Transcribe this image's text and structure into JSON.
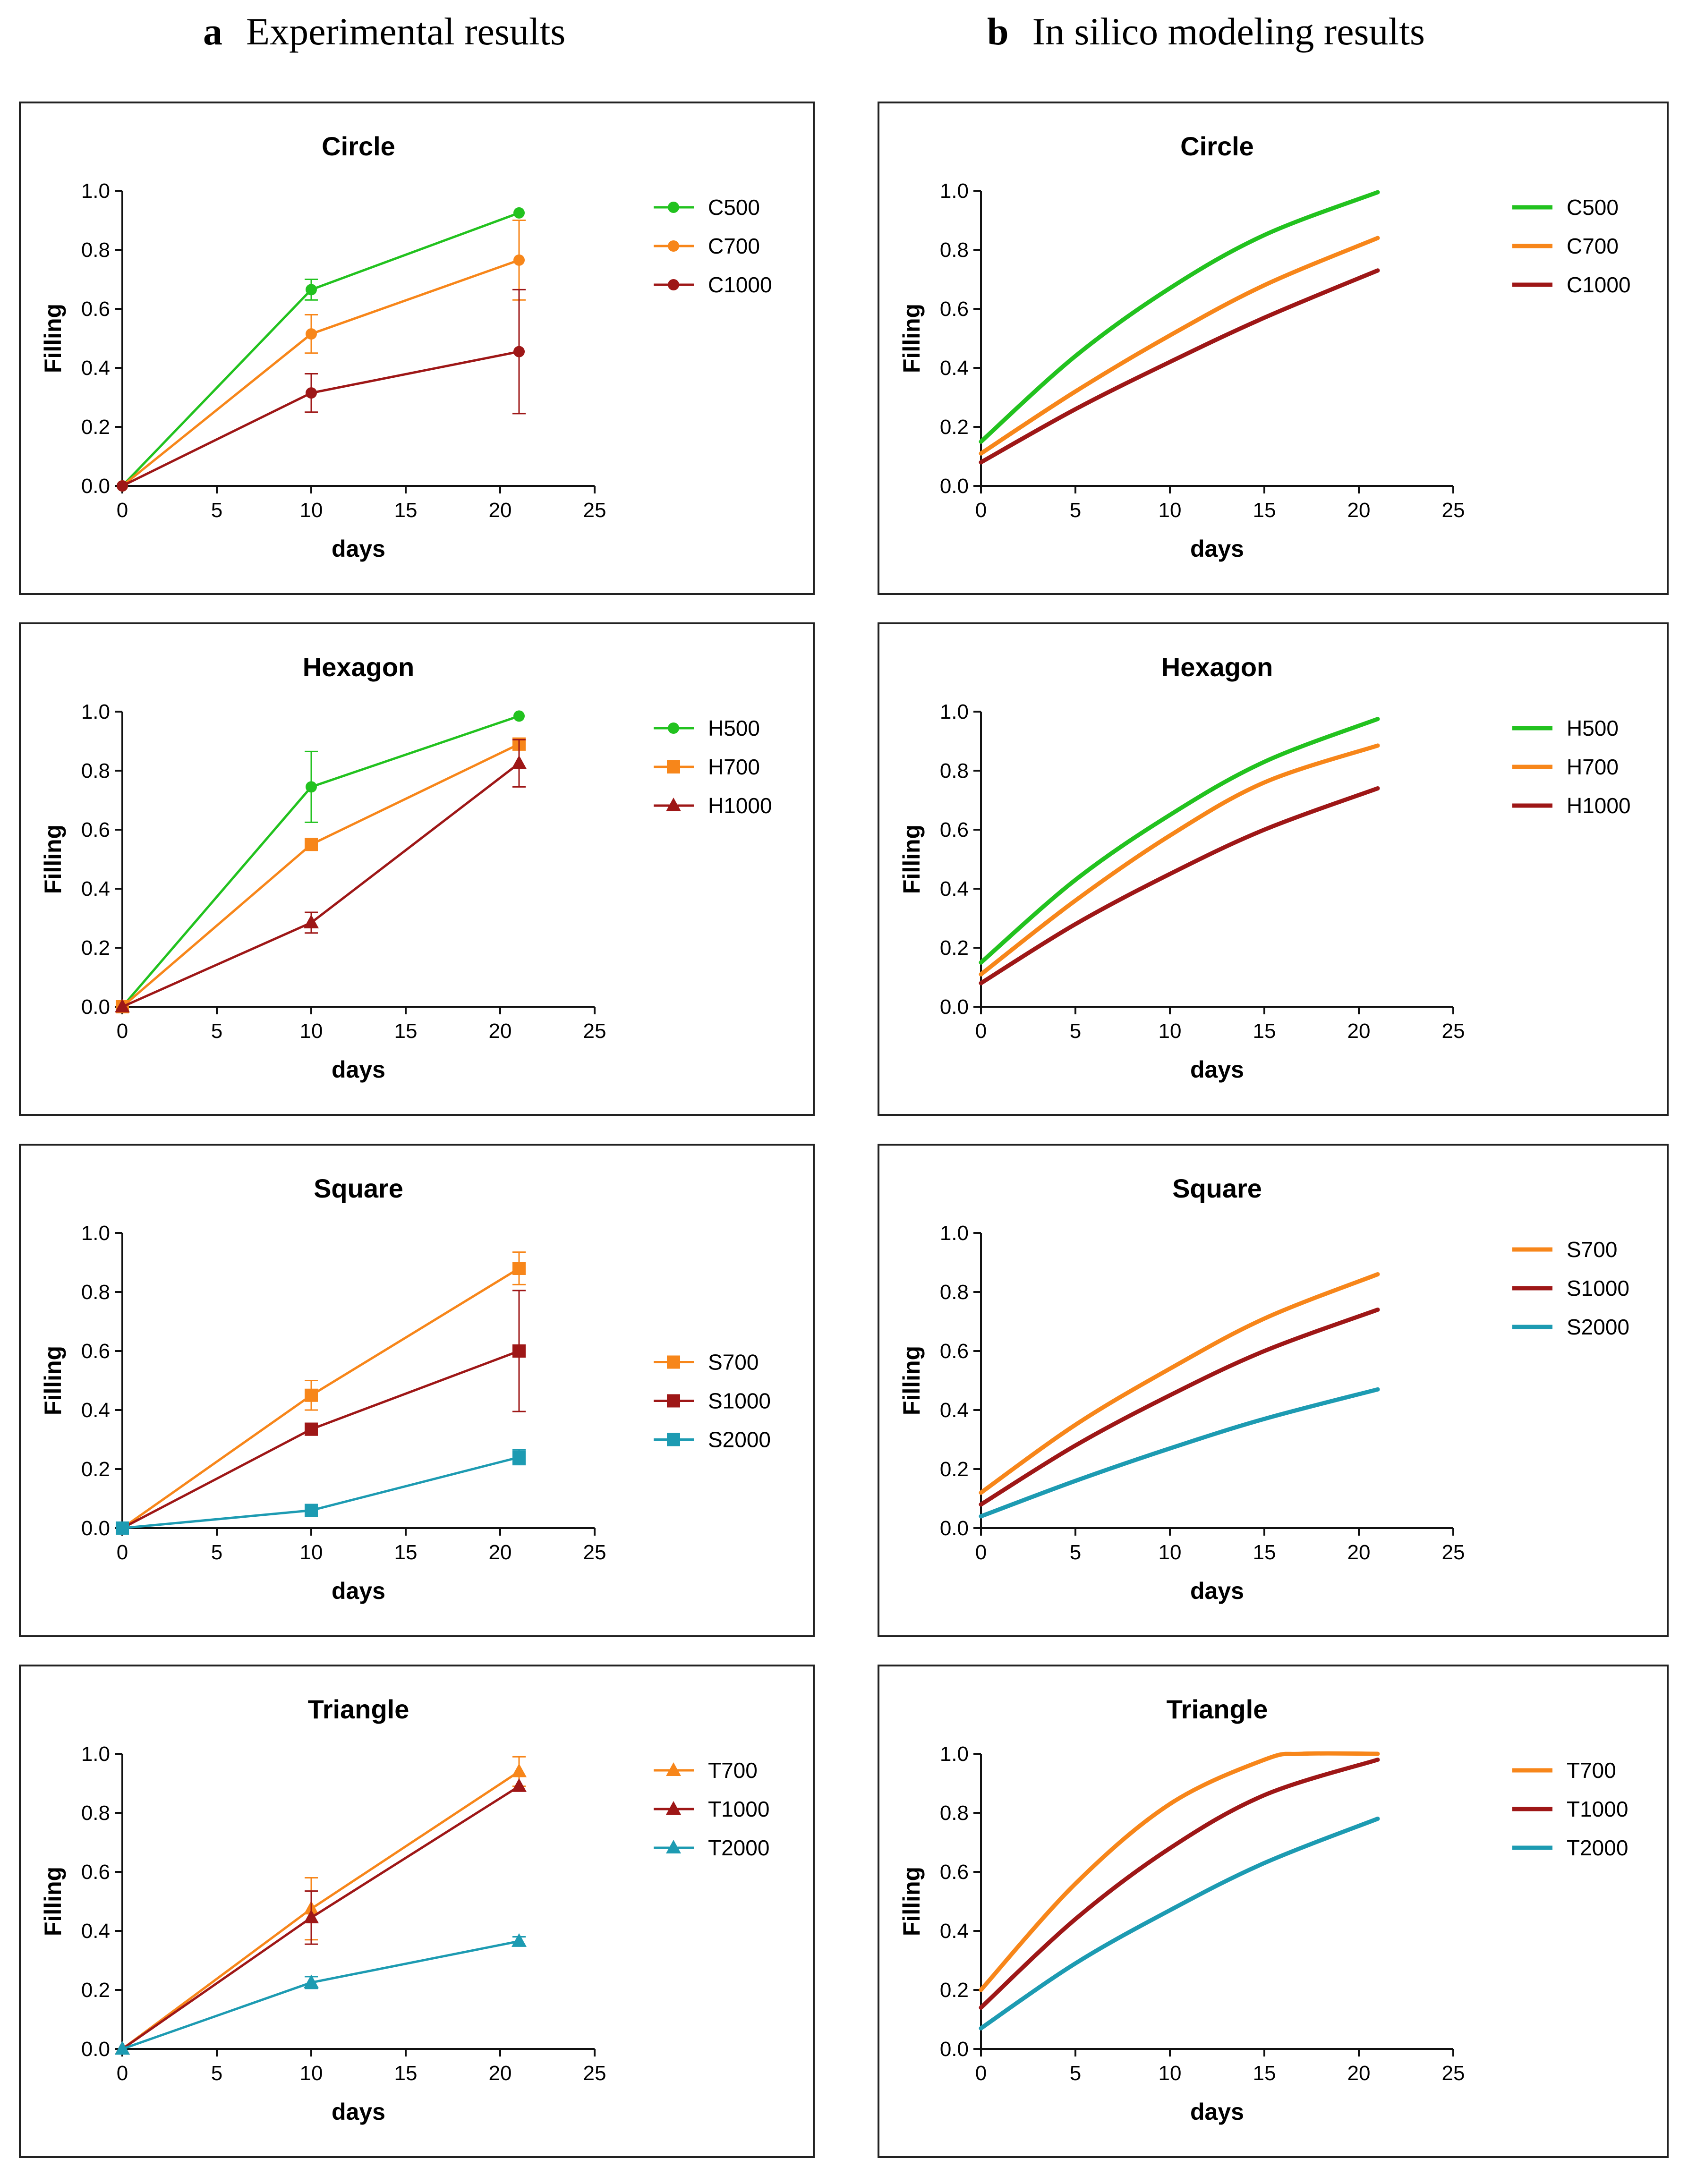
{
  "columns": {
    "a": {
      "letter": "a",
      "title": "Experimental results"
    },
    "b": {
      "letter": "b",
      "title": "In silico modeling results"
    }
  },
  "colors": {
    "green": "#22c21f",
    "orange": "#f7861a",
    "darkred": "#9e1717",
    "teal": "#1d9bb2"
  },
  "chart_data": [
    {
      "id": "exp-circle",
      "type": "line",
      "title": "Circle",
      "xlabel": "days",
      "ylabel": "Filling",
      "xlim": [
        0,
        25
      ],
      "ylim": [
        0,
        1.0
      ],
      "xticks": [
        0,
        5,
        10,
        15,
        20,
        25
      ],
      "yticks": [
        0.0,
        0.2,
        0.4,
        0.6,
        0.8,
        1.0
      ],
      "series": [
        {
          "name": "C500",
          "color": "green",
          "marker": "circle",
          "x": [
            0,
            10,
            21
          ],
          "y": [
            0,
            0.665,
            0.925
          ],
          "err": [
            0,
            0.035,
            0.0
          ]
        },
        {
          "name": "C700",
          "color": "orange",
          "marker": "circle",
          "x": [
            0,
            10,
            21
          ],
          "y": [
            0,
            0.515,
            0.765
          ],
          "err": [
            0,
            0.065,
            0.135
          ]
        },
        {
          "name": "C1000",
          "color": "darkred",
          "marker": "circle",
          "x": [
            0,
            10,
            21
          ],
          "y": [
            0,
            0.315,
            0.455
          ],
          "err": [
            0,
            0.065,
            0.21
          ]
        }
      ]
    },
    {
      "id": "sim-circle",
      "type": "line",
      "title": "Circle",
      "xlabel": "days",
      "ylabel": "Filling",
      "xlim": [
        0,
        25
      ],
      "ylim": [
        0,
        1.0
      ],
      "xticks": [
        0,
        5,
        10,
        15,
        20,
        25
      ],
      "yticks": [
        0.0,
        0.2,
        0.4,
        0.6,
        0.8,
        1.0
      ],
      "series": [
        {
          "name": "C500",
          "color": "green",
          "curve": true,
          "x": [
            0,
            5,
            10,
            15,
            21
          ],
          "y": [
            0.15,
            0.44,
            0.67,
            0.85,
            0.995
          ]
        },
        {
          "name": "C700",
          "color": "orange",
          "curve": true,
          "x": [
            0,
            5,
            10,
            15,
            21
          ],
          "y": [
            0.11,
            0.32,
            0.51,
            0.68,
            0.84
          ]
        },
        {
          "name": "C1000",
          "color": "darkred",
          "curve": true,
          "x": [
            0,
            5,
            10,
            15,
            21
          ],
          "y": [
            0.08,
            0.26,
            0.42,
            0.57,
            0.73
          ]
        }
      ]
    },
    {
      "id": "exp-hexagon",
      "type": "line",
      "title": "Hexagon",
      "xlabel": "days",
      "ylabel": "Filling",
      "xlim": [
        0,
        25
      ],
      "ylim": [
        0,
        1.0
      ],
      "xticks": [
        0,
        5,
        10,
        15,
        20,
        25
      ],
      "yticks": [
        0.0,
        0.2,
        0.4,
        0.6,
        0.8,
        1.0
      ],
      "series": [
        {
          "name": "H500",
          "color": "green",
          "marker": "circle",
          "x": [
            0,
            10,
            21
          ],
          "y": [
            0,
            0.745,
            0.985
          ],
          "err": [
            0,
            0.12,
            0.0
          ]
        },
        {
          "name": "H700",
          "color": "orange",
          "marker": "square",
          "x": [
            0,
            10,
            21
          ],
          "y": [
            0,
            0.55,
            0.89
          ],
          "err": [
            0,
            0.0,
            0.02
          ]
        },
        {
          "name": "H1000",
          "color": "darkred",
          "marker": "triangle",
          "x": [
            0,
            10,
            21
          ],
          "y": [
            0,
            0.285,
            0.825
          ],
          "err": [
            0,
            0.035,
            0.08
          ]
        }
      ]
    },
    {
      "id": "sim-hexagon",
      "type": "line",
      "title": "Hexagon",
      "xlabel": "days",
      "ylabel": "Filling",
      "xlim": [
        0,
        25
      ],
      "ylim": [
        0,
        1.0
      ],
      "xticks": [
        0,
        5,
        10,
        15,
        20,
        25
      ],
      "yticks": [
        0.0,
        0.2,
        0.4,
        0.6,
        0.8,
        1.0
      ],
      "series": [
        {
          "name": "H500",
          "color": "green",
          "curve": true,
          "x": [
            0,
            5,
            10,
            15,
            21
          ],
          "y": [
            0.15,
            0.43,
            0.65,
            0.83,
            0.975
          ]
        },
        {
          "name": "H700",
          "color": "orange",
          "curve": true,
          "x": [
            0,
            5,
            10,
            15,
            21
          ],
          "y": [
            0.11,
            0.36,
            0.58,
            0.76,
            0.885
          ]
        },
        {
          "name": "H1000",
          "color": "darkred",
          "curve": true,
          "x": [
            0,
            5,
            10,
            15,
            21
          ],
          "y": [
            0.08,
            0.28,
            0.45,
            0.6,
            0.74
          ]
        }
      ]
    },
    {
      "id": "exp-square",
      "type": "line",
      "title": "Square",
      "xlabel": "days",
      "ylabel": "Filling",
      "xlim": [
        0,
        25
      ],
      "ylim": [
        0,
        1.0
      ],
      "xticks": [
        0,
        5,
        10,
        15,
        20,
        25
      ],
      "yticks": [
        0.0,
        0.2,
        0.4,
        0.6,
        0.8,
        1.0
      ],
      "legendOffset": 0.45,
      "series": [
        {
          "name": "S700",
          "color": "orange",
          "marker": "square",
          "x": [
            0,
            10,
            21
          ],
          "y": [
            0,
            0.45,
            0.88
          ],
          "err": [
            0,
            0.05,
            0.055
          ]
        },
        {
          "name": "S1000",
          "color": "darkred",
          "marker": "square",
          "x": [
            0,
            10,
            21
          ],
          "y": [
            0,
            0.335,
            0.6
          ],
          "err": [
            0,
            0.02,
            0.205
          ]
        },
        {
          "name": "S2000",
          "color": "teal",
          "marker": "square",
          "x": [
            0,
            10,
            21
          ],
          "y": [
            0,
            0.06,
            0.24
          ],
          "err": [
            0,
            0.0,
            0.025
          ]
        }
      ]
    },
    {
      "id": "sim-square",
      "type": "line",
      "title": "Square",
      "xlabel": "days",
      "ylabel": "Filling",
      "xlim": [
        0,
        25
      ],
      "ylim": [
        0,
        1.0
      ],
      "xticks": [
        0,
        5,
        10,
        15,
        20,
        25
      ],
      "yticks": [
        0.0,
        0.2,
        0.4,
        0.6,
        0.8,
        1.0
      ],
      "series": [
        {
          "name": "S700",
          "color": "orange",
          "curve": true,
          "x": [
            0,
            5,
            10,
            15,
            21
          ],
          "y": [
            0.12,
            0.35,
            0.54,
            0.71,
            0.86
          ]
        },
        {
          "name": "S1000",
          "color": "darkred",
          "curve": true,
          "x": [
            0,
            5,
            10,
            15,
            21
          ],
          "y": [
            0.08,
            0.28,
            0.45,
            0.6,
            0.74
          ]
        },
        {
          "name": "S2000",
          "color": "teal",
          "curve": true,
          "x": [
            0,
            5,
            10,
            15,
            21
          ],
          "y": [
            0.04,
            0.16,
            0.27,
            0.37,
            0.47
          ]
        }
      ]
    },
    {
      "id": "exp-triangle",
      "type": "line",
      "title": "Triangle",
      "xlabel": "days",
      "ylabel": "Filling",
      "xlim": [
        0,
        25
      ],
      "ylim": [
        0,
        1.0
      ],
      "xticks": [
        0,
        5,
        10,
        15,
        20,
        25
      ],
      "yticks": [
        0.0,
        0.2,
        0.4,
        0.6,
        0.8,
        1.0
      ],
      "series": [
        {
          "name": "T700",
          "color": "orange",
          "marker": "triangle",
          "x": [
            0,
            10,
            21
          ],
          "y": [
            0,
            0.475,
            0.94
          ],
          "err": [
            0,
            0.105,
            0.05
          ]
        },
        {
          "name": "T1000",
          "color": "darkred",
          "marker": "triangle",
          "x": [
            0,
            10,
            21
          ],
          "y": [
            0,
            0.445,
            0.89
          ],
          "err": [
            0,
            0.09,
            0.0
          ]
        },
        {
          "name": "T2000",
          "color": "teal",
          "marker": "triangle",
          "x": [
            0,
            10,
            21
          ],
          "y": [
            0,
            0.225,
            0.365
          ],
          "err": [
            0,
            0.02,
            0.015
          ]
        }
      ]
    },
    {
      "id": "sim-triangle",
      "type": "line",
      "title": "Triangle",
      "xlabel": "days",
      "ylabel": "Filling",
      "xlim": [
        0,
        25
      ],
      "ylim": [
        0,
        1.0
      ],
      "xticks": [
        0,
        5,
        10,
        15,
        20,
        25
      ],
      "yticks": [
        0.0,
        0.2,
        0.4,
        0.6,
        0.8,
        1.0
      ],
      "series": [
        {
          "name": "T700",
          "color": "orange",
          "curve": true,
          "x": [
            0,
            5,
            10,
            15,
            17,
            21
          ],
          "y": [
            0.2,
            0.56,
            0.83,
            0.98,
            1.0,
            1.0
          ]
        },
        {
          "name": "T1000",
          "color": "darkred",
          "curve": true,
          "x": [
            0,
            5,
            10,
            15,
            21
          ],
          "y": [
            0.14,
            0.44,
            0.68,
            0.86,
            0.98
          ]
        },
        {
          "name": "T2000",
          "color": "teal",
          "curve": true,
          "x": [
            0,
            5,
            10,
            15,
            21
          ],
          "y": [
            0.07,
            0.29,
            0.47,
            0.63,
            0.78
          ]
        }
      ]
    }
  ]
}
